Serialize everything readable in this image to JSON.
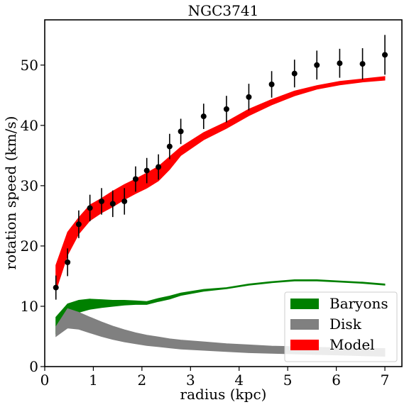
{
  "chart_data": {
    "type": "scatter",
    "title": "NGC3741",
    "xlabel": "radius (kpc)",
    "ylabel": "rotation speed (km/s)",
    "xlim": [
      0,
      7.35
    ],
    "ylim": [
      0,
      57.5
    ],
    "xticks": [
      0,
      1,
      2,
      3,
      4,
      5,
      6,
      7
    ],
    "yticks": [
      0,
      10,
      20,
      30,
      40,
      50
    ],
    "grid": false,
    "legend_position": "lower-right",
    "observed": {
      "x": [
        0.23,
        0.47,
        0.7,
        0.93,
        1.17,
        1.4,
        1.64,
        1.87,
        2.1,
        2.34,
        2.57,
        2.8,
        3.27,
        3.74,
        4.2,
        4.67,
        5.14,
        5.6,
        6.07,
        6.54,
        7.0
      ],
      "y": [
        13.1,
        17.3,
        23.6,
        26.3,
        27.4,
        27.0,
        27.4,
        31.1,
        32.5,
        33.1,
        36.5,
        39.0,
        41.5,
        42.7,
        44.7,
        46.8,
        48.6,
        50.0,
        50.3,
        50.2,
        51.7
      ],
      "err": [
        2.0,
        2.3,
        2.3,
        2.2,
        2.2,
        2.2,
        2.2,
        2.1,
        2.1,
        2.1,
        2.1,
        2.1,
        2.1,
        2.2,
        2.2,
        2.2,
        2.3,
        2.4,
        2.4,
        2.6,
        3.3
      ],
      "color": "#000000"
    },
    "bands": [
      {
        "name": "Baryons",
        "color": "#008000",
        "x": [
          0.23,
          0.47,
          0.7,
          0.93,
          1.17,
          1.4,
          1.64,
          1.87,
          2.1,
          2.34,
          2.57,
          2.8,
          3.27,
          3.74,
          4.2,
          4.67,
          5.14,
          5.6,
          6.07,
          6.54,
          7.0
        ],
        "lower": [
          5.5,
          7.8,
          9.0,
          9.5,
          9.8,
          10.0,
          10.2,
          10.3,
          10.3,
          10.8,
          11.2,
          11.8,
          12.5,
          12.9,
          13.5,
          13.9,
          14.2,
          14.2,
          14.0,
          13.8,
          13.5
        ],
        "upper": [
          8.2,
          10.4,
          11.0,
          11.2,
          11.1,
          11.0,
          11.0,
          10.9,
          10.8,
          11.3,
          11.7,
          12.2,
          12.8,
          13.1,
          13.7,
          14.1,
          14.4,
          14.4,
          14.2,
          14.0,
          13.7
        ]
      },
      {
        "name": "Disk",
        "color": "#808080",
        "x": [
          0.23,
          0.47,
          0.7,
          0.93,
          1.17,
          1.4,
          1.64,
          1.87,
          2.1,
          2.34,
          2.57,
          2.8,
          3.27,
          3.74,
          4.2,
          4.67,
          5.14,
          5.6,
          6.07,
          6.54,
          7.0
        ],
        "lower": [
          5.0,
          6.4,
          6.2,
          5.6,
          5.0,
          4.5,
          4.1,
          3.8,
          3.5,
          3.3,
          3.1,
          2.9,
          2.7,
          2.5,
          2.3,
          2.2,
          2.1,
          2.0,
          1.9,
          1.8,
          1.7
        ],
        "upper": [
          6.6,
          9.6,
          9.0,
          8.2,
          7.4,
          6.7,
          6.1,
          5.6,
          5.2,
          4.9,
          4.6,
          4.4,
          4.1,
          3.8,
          3.6,
          3.4,
          3.3,
          3.2,
          3.1,
          3.0,
          3.0
        ]
      },
      {
        "name": "Model",
        "color": "#ff0000",
        "x": [
          0.23,
          0.47,
          0.7,
          0.93,
          1.17,
          1.4,
          1.64,
          1.87,
          2.1,
          2.34,
          2.57,
          2.8,
          3.27,
          3.74,
          4.2,
          4.67,
          5.14,
          5.6,
          6.07,
          6.54,
          7.0
        ],
        "lower": [
          12.6,
          18.5,
          22.0,
          24.2,
          25.5,
          26.5,
          27.7,
          28.7,
          29.6,
          30.8,
          32.7,
          35.0,
          37.6,
          39.5,
          41.6,
          43.4,
          44.9,
          46.0,
          46.7,
          47.2,
          47.5
        ],
        "upper": [
          16.8,
          22.3,
          24.7,
          26.8,
          27.9,
          29.1,
          30.2,
          31.1,
          32.1,
          33.2,
          34.8,
          36.4,
          38.8,
          40.6,
          42.7,
          44.3,
          45.7,
          46.6,
          47.3,
          47.7,
          48.1
        ]
      }
    ]
  }
}
